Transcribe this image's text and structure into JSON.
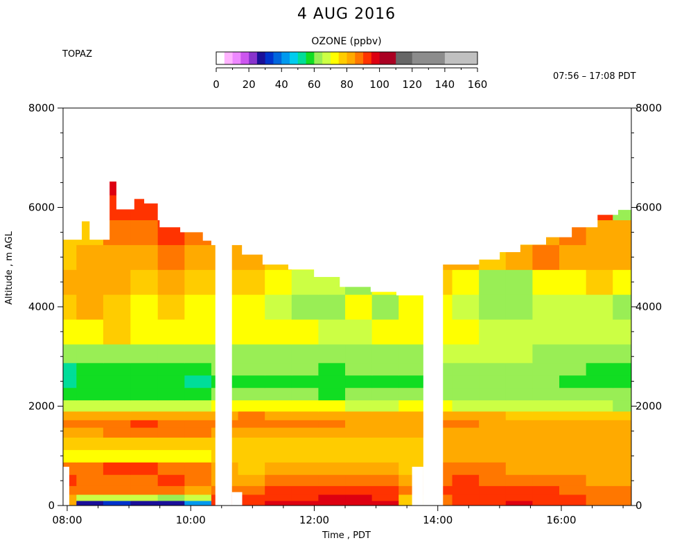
{
  "header": {
    "title": "4 AUG 2016",
    "station": "TOPAZ",
    "time_range": "07:56 – 17:08 PDT"
  },
  "colorbar": {
    "title": "OZONE (ppbv)",
    "tick_labels": [
      "0",
      "20",
      "40",
      "60",
      "80",
      "100",
      "120",
      "140",
      "160"
    ],
    "bins": [
      {
        "from": 0,
        "to": 5,
        "color": "#ffffff"
      },
      {
        "from": 5,
        "to": 10,
        "color": "#ffb3ff"
      },
      {
        "from": 10,
        "to": 15,
        "color": "#ee88ff"
      },
      {
        "from": 15,
        "to": 20,
        "color": "#cc55ee"
      },
      {
        "from": 20,
        "to": 25,
        "color": "#8833cc"
      },
      {
        "from": 25,
        "to": 30,
        "color": "#1a0f99"
      },
      {
        "from": 30,
        "to": 35,
        "color": "#0033cc"
      },
      {
        "from": 35,
        "to": 40,
        "color": "#0066dd"
      },
      {
        "from": 40,
        "to": 45,
        "color": "#0099ee"
      },
      {
        "from": 45,
        "to": 50,
        "color": "#00ccee"
      },
      {
        "from": 50,
        "to": 55,
        "color": "#00dd99"
      },
      {
        "from": 55,
        "to": 60,
        "color": "#11dd22"
      },
      {
        "from": 60,
        "to": 65,
        "color": "#99ee55"
      },
      {
        "from": 65,
        "to": 70,
        "color": "#ccff44"
      },
      {
        "from": 70,
        "to": 75,
        "color": "#ffff00"
      },
      {
        "from": 75,
        "to": 80,
        "color": "#ffcc00"
      },
      {
        "from": 80,
        "to": 85,
        "color": "#ffaa00"
      },
      {
        "from": 85,
        "to": 90,
        "color": "#ff7700"
      },
      {
        "from": 90,
        "to": 95,
        "color": "#ff3300"
      },
      {
        "from": 95,
        "to": 100,
        "color": "#dd0011"
      },
      {
        "from": 100,
        "to": 110,
        "color": "#aa0022"
      },
      {
        "from": 110,
        "to": 120,
        "color": "#666666"
      },
      {
        "from": 120,
        "to": 140,
        "color": "#8c8c8c"
      },
      {
        "from": 140,
        "to": 160,
        "color": "#c0c0c0"
      }
    ]
  },
  "chart_data": {
    "type": "heatmap",
    "xlabel": "Time , PDT",
    "ylabel": "Altitude , m AGL",
    "x_tick_labels": [
      "08:00",
      "10:00",
      "12:00",
      "14:00",
      "16:00"
    ],
    "y_tick_labels": [
      "0",
      "2000",
      "4000",
      "6000",
      "8000"
    ],
    "xlim": [
      "07:56",
      "17:08"
    ],
    "ylim": [
      0,
      8000
    ],
    "value_label": "Ozone (ppbv)",
    "x": [
      "07:56",
      "08:22",
      "08:48",
      "09:15",
      "09:41",
      "10:07",
      "10:33",
      "10:59",
      "11:25",
      "11:51",
      "12:17",
      "12:43",
      "13:09",
      "13:35",
      "14:01",
      "14:27",
      "14:53",
      "15:19",
      "15:45",
      "16:11",
      "16:37",
      "17:03"
    ],
    "y": [
      50,
      150,
      300,
      500,
      750,
      1000,
      1250,
      1500,
      1650,
      1800,
      2000,
      2250,
      2500,
      2750,
      3000,
      3500,
      4000,
      4500,
      5000,
      5500,
      6000,
      6500
    ],
    "z": [
      [
        82,
        25,
        30,
        28,
        25,
        42,
        92,
        92,
        95,
        96,
        97,
        97,
        95,
        78,
        89,
        94,
        94,
        95,
        92,
        91,
        88,
        87
      ],
      [
        84,
        65,
        65,
        65,
        62,
        66,
        90,
        90,
        92,
        93,
        95,
        95,
        94,
        78,
        89,
        92,
        93,
        94,
        91,
        90,
        87,
        86
      ],
      [
        88,
        86,
        86,
        86,
        85,
        84,
        88,
        89,
        90,
        91,
        92,
        93,
        92,
        88,
        90,
        91,
        92,
        92,
        90,
        89,
        87,
        85
      ],
      [
        91,
        89,
        89,
        89,
        90,
        87,
        84,
        82,
        85,
        86,
        86,
        88,
        85,
        84,
        89,
        90,
        88,
        88,
        86,
        85,
        83,
        82
      ],
      [
        88,
        88,
        90,
        90,
        88,
        86,
        80,
        78,
        82,
        80,
        82,
        84,
        80,
        76,
        85,
        86,
        86,
        84,
        82,
        82,
        80,
        80
      ],
      [
        73,
        72,
        73,
        73,
        73,
        72,
        76,
        75,
        77,
        77,
        76,
        78,
        77,
        76,
        82,
        81,
        80,
        80,
        80,
        80,
        80,
        80
      ],
      [
        76,
        76,
        76,
        76,
        76,
        75,
        78,
        78,
        78,
        78,
        78,
        78,
        77,
        77,
        80,
        80,
        80,
        80,
        80,
        80,
        80,
        80
      ],
      [
        84,
        84,
        85,
        86,
        86,
        85,
        83,
        84,
        84,
        84,
        83,
        83,
        82,
        82,
        84,
        83,
        83,
        82,
        82,
        82,
        82,
        81
      ],
      [
        86,
        87,
        88,
        90,
        88,
        86,
        86,
        88,
        86,
        86,
        85,
        84,
        84,
        84,
        86,
        85,
        84,
        84,
        84,
        84,
        84,
        83
      ],
      [
        80,
        82,
        82,
        82,
        82,
        80,
        84,
        86,
        84,
        84,
        82,
        82,
        82,
        80,
        82,
        80,
        80,
        78,
        78,
        78,
        78,
        78
      ],
      [
        68,
        67,
        68,
        68,
        67,
        66,
        72,
        72,
        70,
        70,
        70,
        68,
        68,
        70,
        70,
        68,
        66,
        66,
        66,
        66,
        66,
        64
      ],
      [
        58,
        56,
        57,
        57,
        58,
        56,
        60,
        62,
        60,
        60,
        58,
        60,
        62,
        62,
        64,
        64,
        64,
        62,
        62,
        62,
        62,
        60
      ],
      [
        52,
        55,
        56,
        56,
        55,
        54,
        57,
        58,
        56,
        57,
        55,
        56,
        58,
        58,
        63,
        62,
        62,
        60,
        60,
        58,
        58,
        56
      ],
      [
        54,
        57,
        58,
        57,
        56,
        56,
        61,
        60,
        60,
        60,
        59,
        60,
        62,
        62,
        64,
        64,
        63,
        62,
        60,
        60,
        59,
        58
      ],
      [
        63,
        62,
        63,
        64,
        63,
        62,
        64,
        64,
        64,
        64,
        64,
        64,
        64,
        64,
        66,
        66,
        66,
        65,
        64,
        64,
        63,
        63
      ],
      [
        72,
        74,
        76,
        73,
        70,
        72,
        70,
        70,
        70,
        70,
        68,
        68,
        70,
        70,
        70,
        70,
        68,
        68,
        66,
        66,
        66,
        66
      ],
      [
        76,
        80,
        78,
        74,
        76,
        74,
        72,
        72,
        66,
        64,
        62,
        70,
        64,
        74,
        74,
        66,
        64,
        62,
        66,
        68,
        66,
        64
      ],
      [
        80,
        82,
        80,
        78,
        80,
        76,
        76,
        78,
        70,
        68,
        66,
        64,
        72,
        80,
        76,
        70,
        64,
        62,
        70,
        74,
        76,
        72
      ],
      [
        78,
        80,
        84,
        84,
        86,
        80,
        80,
        84,
        76,
        74,
        78,
        74,
        80,
        90,
        82,
        80,
        78,
        84,
        86,
        84,
        82,
        80
      ],
      [
        77,
        78,
        86,
        88,
        90,
        86,
        0,
        0,
        0,
        0,
        0,
        0,
        0,
        0,
        0,
        0,
        0,
        78,
        82,
        86,
        84,
        82
      ],
      [
        0,
        0,
        92,
        94,
        0,
        0,
        0,
        0,
        0,
        0,
        0,
        0,
        0,
        0,
        0,
        0,
        0,
        0,
        0,
        0,
        90,
        60
      ],
      [
        0,
        0,
        96,
        0,
        0,
        0,
        0,
        0,
        0,
        0,
        0,
        0,
        0,
        0,
        0,
        0,
        0,
        0,
        0,
        0,
        0,
        0
      ]
    ],
    "profile_top_m": [
      {
        "from": "07:56",
        "to": "08:14",
        "top": 5350
      },
      {
        "from": "08:14",
        "to": "08:22",
        "top": 5720
      },
      {
        "from": "08:22",
        "to": "08:41",
        "top": 5350
      },
      {
        "from": "08:41",
        "to": "08:48",
        "top": 6520
      },
      {
        "from": "08:48",
        "to": "09:05",
        "top": 5960
      },
      {
        "from": "09:05",
        "to": "09:15",
        "top": 6170
      },
      {
        "from": "09:15",
        "to": "09:30",
        "top": 6080
      },
      {
        "from": "09:30",
        "to": "09:50",
        "top": 5600
      },
      {
        "from": "09:50",
        "to": "10:12",
        "top": 5500
      },
      {
        "from": "10:12",
        "to": "10:24",
        "top": 5330
      },
      {
        "from": "10:40",
        "to": "10:50",
        "top": 5320
      },
      {
        "from": "10:50",
        "to": "11:10",
        "top": 5050
      },
      {
        "from": "11:10",
        "to": "11:35",
        "top": 4850
      },
      {
        "from": "11:35",
        "to": "12:00",
        "top": 4750
      },
      {
        "from": "12:00",
        "to": "12:25",
        "top": 4600
      },
      {
        "from": "12:25",
        "to": "12:55",
        "top": 4400
      },
      {
        "from": "12:55",
        "to": "13:20",
        "top": 4300
      },
      {
        "from": "13:20",
        "to": "13:46",
        "top": 4230
      },
      {
        "from": "14:05",
        "to": "14:40",
        "top": 4850
      },
      {
        "from": "14:40",
        "to": "15:00",
        "top": 4950
      },
      {
        "from": "15:00",
        "to": "15:20",
        "top": 5100
      },
      {
        "from": "15:20",
        "to": "15:45",
        "top": 5250
      },
      {
        "from": "15:45",
        "to": "16:10",
        "top": 5400
      },
      {
        "from": "16:10",
        "to": "16:35",
        "top": 5600
      },
      {
        "from": "16:35",
        "to": "16:55",
        "top": 5850
      },
      {
        "from": "16:55",
        "to": "17:08",
        "top": 5950
      }
    ],
    "profile_bottom_m": [
      {
        "from": "07:56",
        "to": "08:02",
        "bottom": 780
      },
      {
        "from": "10:24",
        "to": "10:40",
        "bottom": null
      },
      {
        "from": "10:40",
        "to": "10:50",
        "bottom": 270
      },
      {
        "from": "13:35",
        "to": "13:46",
        "bottom": 780
      },
      {
        "from": "13:46",
        "to": "14:05",
        "bottom": null
      },
      {
        "from": "17:02",
        "to": "17:08",
        "bottom": 0
      }
    ],
    "grid": false,
    "legend": "colorbar-top-center"
  }
}
